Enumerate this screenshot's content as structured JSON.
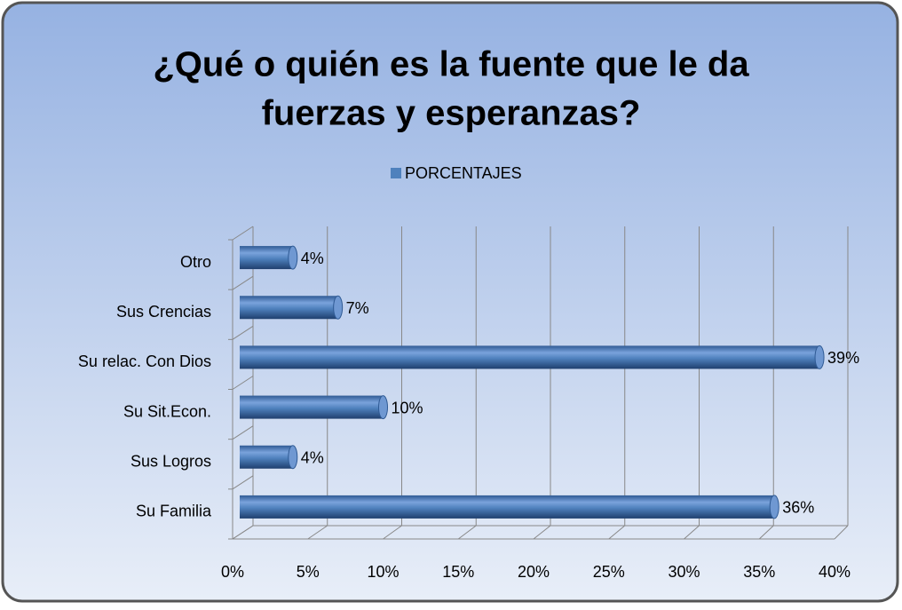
{
  "chart_data": {
    "type": "hbar",
    "title": [
      "¿Qué o quién es la fuente que le da",
      "fuerzas y esperanzas?"
    ],
    "categories": [
      "Otro",
      "Sus Crencias",
      "Su relac. Con Dios",
      "Su Sit.Econ.",
      "Sus Logros",
      "Su Familia"
    ],
    "series": [
      {
        "name": "PORCENTAJES",
        "color": "#4f81bd",
        "values": [
          4,
          7,
          39,
          10,
          4,
          36
        ],
        "value_labels": [
          "4%",
          "7%",
          "39%",
          "10%",
          "4%",
          "36%"
        ]
      }
    ],
    "xlim": [
      0,
      40
    ],
    "xticks": [
      {
        "value": 0,
        "label": "0%"
      },
      {
        "value": 5,
        "label": "5%"
      },
      {
        "value": 10,
        "label": "10%"
      },
      {
        "value": 15,
        "label": "15%"
      },
      {
        "value": 20,
        "label": "20%"
      },
      {
        "value": 25,
        "label": "25%"
      },
      {
        "value": 30,
        "label": "30%"
      },
      {
        "value": 35,
        "label": "35%"
      },
      {
        "value": 40,
        "label": "40%"
      }
    ],
    "grid": true,
    "legend": "top"
  }
}
